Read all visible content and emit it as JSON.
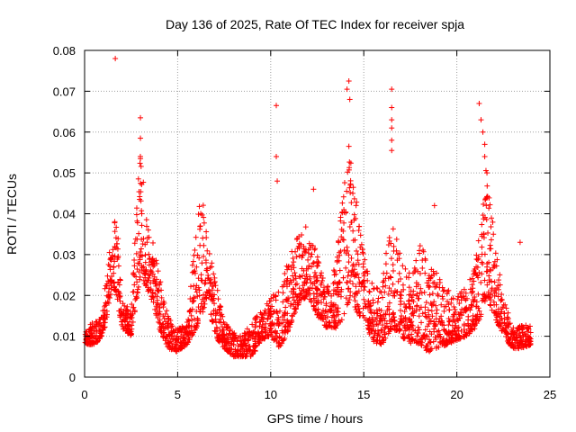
{
  "chart_data": {
    "type": "scatter",
    "title": "Day 136 of 2025, Rate Of TEC Index for receiver spja",
    "xlabel": "GPS time / hours",
    "ylabel": "ROTI / TECUs",
    "xlim": [
      0,
      25
    ],
    "ylim": [
      0,
      0.08
    ],
    "x_ticks": [
      0,
      5,
      10,
      15,
      20,
      25
    ],
    "x_tick_labels": [
      "0",
      "5",
      "10",
      "15",
      "20",
      "25"
    ],
    "y_ticks": [
      0,
      0.01,
      0.02,
      0.03,
      0.04,
      0.05,
      0.06,
      0.07,
      0.08
    ],
    "y_tick_labels": [
      "0",
      "0.01",
      "0.02",
      "0.03",
      "0.04",
      "0.05",
      "0.06",
      "0.07",
      "0.08"
    ],
    "grid": true,
    "marker": "+",
    "color": "#ff0000",
    "envelope": [
      [
        0.0,
        0.008,
        0.011
      ],
      [
        0.3,
        0.008,
        0.013
      ],
      [
        0.6,
        0.008,
        0.014
      ],
      [
        0.9,
        0.01,
        0.015
      ],
      [
        1.1,
        0.012,
        0.022
      ],
      [
        1.3,
        0.018,
        0.03
      ],
      [
        1.5,
        0.022,
        0.033
      ],
      [
        1.7,
        0.02,
        0.043
      ],
      [
        2.0,
        0.012,
        0.02
      ],
      [
        2.5,
        0.01,
        0.016
      ],
      [
        3.0,
        0.025,
        0.06
      ],
      [
        3.3,
        0.022,
        0.04
      ],
      [
        3.7,
        0.018,
        0.033
      ],
      [
        4.0,
        0.012,
        0.025
      ],
      [
        4.5,
        0.007,
        0.015
      ],
      [
        5.0,
        0.006,
        0.012
      ],
      [
        5.5,
        0.008,
        0.013
      ],
      [
        6.0,
        0.012,
        0.04
      ],
      [
        6.3,
        0.015,
        0.045
      ],
      [
        6.6,
        0.02,
        0.034
      ],
      [
        7.0,
        0.01,
        0.025
      ],
      [
        7.5,
        0.007,
        0.014
      ],
      [
        8.0,
        0.005,
        0.011
      ],
      [
        8.5,
        0.005,
        0.01
      ],
      [
        9.0,
        0.005,
        0.014
      ],
      [
        9.5,
        0.009,
        0.016
      ],
      [
        10.0,
        0.01,
        0.02
      ],
      [
        10.5,
        0.007,
        0.022
      ],
      [
        11.0,
        0.012,
        0.03
      ],
      [
        11.5,
        0.018,
        0.035
      ],
      [
        12.0,
        0.02,
        0.038
      ],
      [
        12.5,
        0.015,
        0.03
      ],
      [
        13.0,
        0.012,
        0.022
      ],
      [
        13.5,
        0.012,
        0.028
      ],
      [
        14.0,
        0.015,
        0.05
      ],
      [
        14.3,
        0.02,
        0.055
      ],
      [
        14.7,
        0.015,
        0.04
      ],
      [
        15.0,
        0.015,
        0.03
      ],
      [
        15.5,
        0.008,
        0.022
      ],
      [
        16.0,
        0.008,
        0.025
      ],
      [
        16.5,
        0.012,
        0.04
      ],
      [
        17.0,
        0.01,
        0.03
      ],
      [
        17.5,
        0.008,
        0.025
      ],
      [
        18.0,
        0.008,
        0.033
      ],
      [
        18.5,
        0.006,
        0.028
      ],
      [
        19.0,
        0.007,
        0.025
      ],
      [
        19.5,
        0.008,
        0.022
      ],
      [
        20.0,
        0.009,
        0.02
      ],
      [
        20.5,
        0.01,
        0.022
      ],
      [
        21.0,
        0.012,
        0.028
      ],
      [
        21.3,
        0.015,
        0.04
      ],
      [
        21.6,
        0.02,
        0.052
      ],
      [
        22.0,
        0.015,
        0.035
      ],
      [
        22.5,
        0.01,
        0.02
      ],
      [
        23.0,
        0.007,
        0.012
      ],
      [
        23.5,
        0.007,
        0.013
      ],
      [
        24.0,
        0.008,
        0.013
      ]
    ],
    "outliers": [
      [
        1.65,
        0.078
      ],
      [
        3.0,
        0.0635
      ],
      [
        3.0,
        0.0585
      ],
      [
        3.0,
        0.0535
      ],
      [
        10.3,
        0.0665
      ],
      [
        10.3,
        0.054
      ],
      [
        10.35,
        0.048
      ],
      [
        12.3,
        0.046
      ],
      [
        14.1,
        0.0705
      ],
      [
        14.2,
        0.0725
      ],
      [
        14.25,
        0.068
      ],
      [
        14.2,
        0.0565
      ],
      [
        16.5,
        0.0705
      ],
      [
        16.5,
        0.066
      ],
      [
        16.5,
        0.063
      ],
      [
        16.5,
        0.061
      ],
      [
        16.5,
        0.058
      ],
      [
        16.5,
        0.0555
      ],
      [
        21.2,
        0.067
      ],
      [
        21.3,
        0.063
      ],
      [
        21.4,
        0.06
      ],
      [
        21.5,
        0.057
      ],
      [
        21.5,
        0.054
      ],
      [
        23.4,
        0.033
      ],
      [
        18.8,
        0.042
      ]
    ]
  }
}
